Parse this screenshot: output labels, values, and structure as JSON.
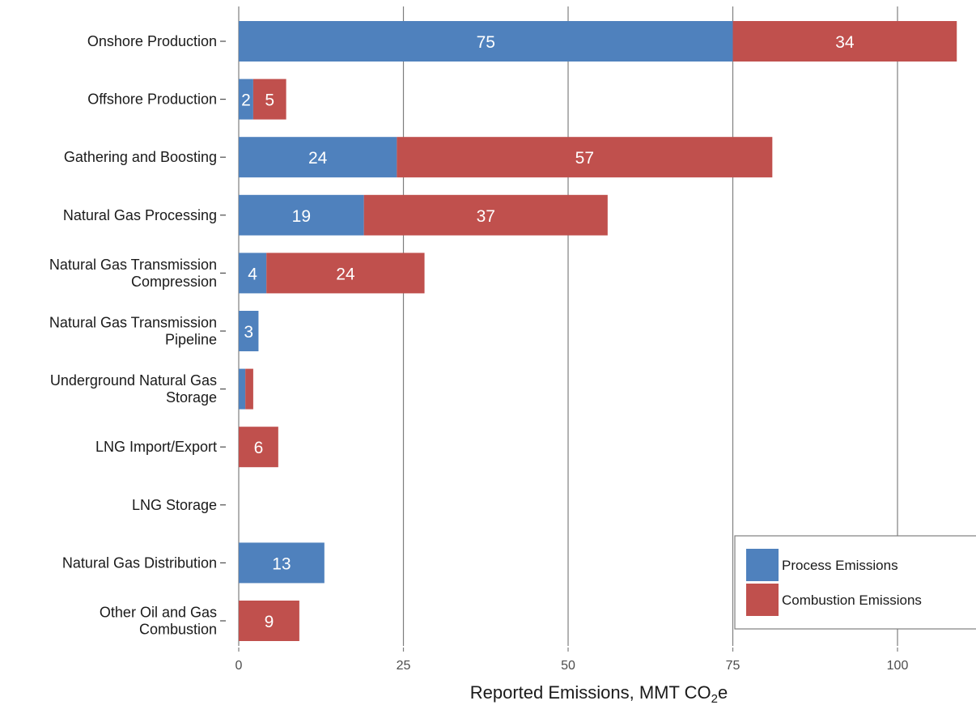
{
  "chart_data": {
    "type": "bar",
    "orientation": "horizontal",
    "stacked": true,
    "categories": [
      "Onshore Production",
      "Offshore Production",
      "Gathering and Boosting",
      "Natural Gas Processing",
      "Natural Gas Transmission Compression",
      "Natural Gas Transmission Pipeline",
      "Underground Natural Gas Storage",
      "LNG Import/Export",
      "LNG Storage",
      "Natural Gas Distribution",
      "Other Oil and Gas Combustion"
    ],
    "category_lines": [
      [
        "Onshore Production"
      ],
      [
        "Offshore Production"
      ],
      [
        "Gathering and Boosting"
      ],
      [
        "Natural Gas Processing"
      ],
      [
        "Natural Gas Transmission",
        "Compression"
      ],
      [
        "Natural Gas Transmission",
        "Pipeline"
      ],
      [
        "Underground Natural Gas",
        "Storage"
      ],
      [
        "LNG Import/Export"
      ],
      [
        "LNG Storage"
      ],
      [
        "Natural Gas Distribution"
      ],
      [
        "Other Oil and Gas",
        "Combustion"
      ]
    ],
    "series": [
      {
        "name": "Process Emissions",
        "color": "#4f81bd",
        "values": [
          75,
          2.2,
          24,
          19,
          4.2,
          3,
          1,
          0,
          0,
          13,
          0
        ],
        "labels": [
          "75",
          "2",
          "24",
          "19",
          "4",
          "3",
          "",
          "",
          "",
          "13",
          ""
        ]
      },
      {
        "name": "Combustion Emissions",
        "color": "#c0504d",
        "values": [
          34,
          5,
          57,
          37,
          24,
          0,
          1.2,
          6,
          0,
          0,
          9.2
        ],
        "labels": [
          "34",
          "5",
          "57",
          "37",
          "24",
          "",
          "",
          "6",
          "",
          "",
          "9"
        ]
      }
    ],
    "xlabel": "Reported Emissions, MMT CO",
    "xlabel_sub": "2",
    "xlabel_suffix": "e",
    "xlim": [
      0,
      110
    ],
    "xticks": [
      0,
      25,
      50,
      75,
      100
    ],
    "xtick_labels": [
      "0",
      "25",
      "50",
      "75",
      "100"
    ],
    "grid": "vertical",
    "legend_position": "bottom-right"
  }
}
